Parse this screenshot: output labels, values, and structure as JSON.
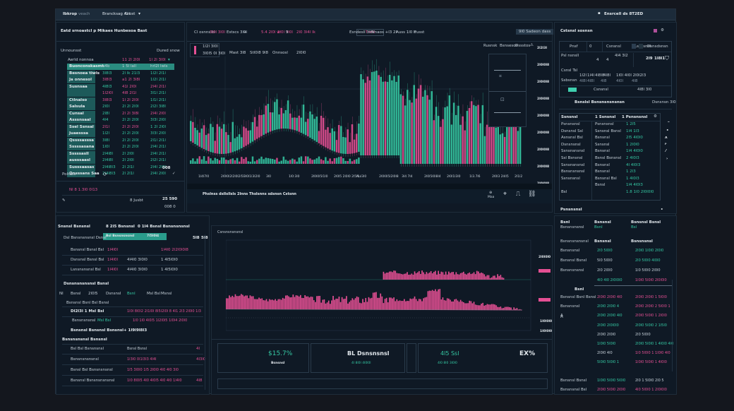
{
  "colors": {
    "up": "#35c9a4",
    "down": "#e44f93",
    "bg": "#0f1a26",
    "panel": "#0f1925",
    "topbar": "#1c2b3a"
  },
  "topbar": {
    "menu": [
      "Ibkrop",
      "veach",
      "Brancksag Ast",
      "G ost"
    ],
    "dropdown_icon": "chevron-down-icon",
    "right_label": "Ensrcell ds 8T2ED"
  },
  "watchlist": {
    "title": "Eatd srnoastcl p Mikaes Hunbesoa Bast",
    "col_left": "Unnounsst",
    "col_right": "Dured snow",
    "header_row": [
      "Aerld nonnoa",
      "11 2l 2l0l",
      "1l 2l 3l0l"
    ],
    "rows": [
      [
        "Buonconskasmt",
        "a4b",
        "1 5l  lall",
        "hrl2l  lwls",
        "up"
      ],
      [
        "Besnoea tiwls",
        "3l8l3",
        "2l lk  21l3",
        "1l2l  2l1l",
        "up"
      ],
      [
        "Ja onnesol",
        "3l8l3",
        "a1 2l  3l8l",
        "1l2l  2l1l",
        "down"
      ],
      [
        "Susnsaa",
        "4l8l3",
        "41l  2l0l",
        "2l4l  2l1l",
        "mixed"
      ],
      [
        "",
        "1l2l0l",
        "4l8 2l1l",
        "3l1l  2l1l",
        "down"
      ],
      [
        "Ctlnalso",
        "3l8l3",
        "1l 2l  2l0l",
        "1l1l  2l1l",
        "down"
      ],
      [
        "Salsula",
        "2l0l",
        "2l 2l  2l0l",
        "2l2l  3l8l",
        "up"
      ],
      [
        "Cunsal",
        "2l8l",
        "2l 2l  3l8l",
        "2l4l  2l0l",
        "mixed"
      ],
      [
        "Asssnsaal",
        "4l4",
        "2l 2l  2l0l",
        "3l3l  2l0l",
        "up"
      ],
      [
        "Ssel Ssnsal",
        "2l1l",
        "2l 2l  2l0l",
        "1 2l  2l0l",
        "down"
      ],
      [
        "Juaesssa",
        "1l2l",
        "2l 2l  2l0l",
        "3l3l  2l0l",
        "up"
      ],
      [
        "Qssssasssa",
        "3l8l",
        "2l 2l  2l0l",
        "2l1l  2l1l",
        "up"
      ],
      [
        "Sssssasana",
        "1l0l",
        "2l 2l  2l0l",
        "2l4l  2l1l",
        "up"
      ],
      [
        "Sssssasll",
        "2l4l8l",
        "2l  2l0l",
        "2l4l  2l1l",
        "up"
      ],
      [
        "ausssaasl",
        "2l4l8l",
        "2l 2l0l",
        "2l2l  2l1l",
        "up"
      ],
      [
        "Susssaasas",
        "2l4l8l3",
        "2l  2l1l",
        "2l4l  2l0l",
        "up"
      ],
      [
        "Qnsssans Saa",
        "2l4l8l3",
        "2l  2l1l",
        "2l4l  2l0l",
        "up"
      ]
    ],
    "footer_badge": "008",
    "position_label": "Poltbss",
    "ticker_line": "Nl  8  1.3l0  0l13",
    "order_label": "8 Jusbt",
    "order_value": "25 590",
    "order_sub": "008 0"
  },
  "chart": {
    "toolbar": [
      "Cl osnns  bi",
      "3l0l 3l0l",
      "Estscs  3l0l",
      "+",
      "5.4 2l0l  w",
      "2l0l  3l0l",
      "9",
      "2l0 3l4l  Ik",
      "Tnslt",
      "Esndesll  3l6l",
      "Vnaos  +l3  2l",
      "Auss  1l0  h",
      "Fusst",
      "9l0 Sadeon dass"
    ],
    "mini_legend": [
      "1l2l  3l0l",
      "3l0l5 0l  3l0l"
    ],
    "legend": [
      "Mast  3l8",
      "Stl0l8  9l8",
      "Onnsosl",
      "2l0l0"
    ],
    "right_tabs": [
      "Rusnsk",
      "Bsnsesos",
      "Dssstos"
    ],
    "y_ticks": [
      "2l2l3l",
      "2l0l0l8",
      "2l0l0l8",
      "2l0l0l8",
      "2l0l0l8",
      "2l0l0l8",
      "2l0l0l8",
      "2l0l0l8",
      "2l0l0l8"
    ],
    "x_ticks": [
      "1l4l7l0",
      "2l0l0l2l2l0l2l5l",
      "3l0l1l3l2l0",
      "3l0",
      "1l0:3l0",
      "2l0l0l5l1l0",
      "2l0l5  2l0l0  2l5l0",
      "Aul3l0",
      "2l0l0l5l2l0l8",
      "3l4  7l4",
      "2l0l5l0l8l4",
      "2l0l1l3l0",
      "1l3.7l6",
      "2l0l3  2l4l5",
      "2l1l2"
    ],
    "bottom_label": "Phslnss  dsllsllsls  2lnns  Thslsnns  sdsnsn Cstsnn",
    "bottom_icons": [
      "zoom-label",
      "crosshair-icon",
      "line-tool-icon",
      "chain-icon"
    ],
    "bottom_zoom": "Maa"
  },
  "order_panel": {
    "title": "Cstsnsl  sosnsn",
    "tabs": [
      "Pnsf",
      "0",
      "Csnsnsl",
      "Lssdsnsl",
      "Dsnsdsnsn"
    ],
    "row1_label": "Psl nsnsll",
    "row1_vals": [
      "4",
      "4",
      "4l4 3l2"
    ],
    "row1_right": [
      "2l9",
      "1l8l1"
    ],
    "row2_label": "Csnsl  Tsl",
    "row2_vals": [
      "1l2l",
      "1l4l",
      "4l8l8",
      "4l8l",
      "1l0l 4l0l  2l0l2l3"
    ],
    "row3_label": "Ssbsnsn",
    "row3_vals": [
      "4l8l",
      "4l8l",
      "4l8",
      "4l0l",
      "4l8"
    ],
    "toggle": "Dsnsl",
    "toggle_mid": "Csnsnsl",
    "toggle_right": "4l8l 3l0",
    "action": "Bsnslsl  Bsnsnsnsnsnsn",
    "action_right": "Dsnsnsn  3l0"
  },
  "positions": {
    "headers": [
      "Ssnsnsl",
      "1  Ssnsnsl",
      "1  Psnsnsnsl"
    ],
    "rows": [
      [
        "Psnsnsnsl",
        "Psnsnsnsl",
        "1  2l5"
      ],
      [
        "Dsnsnsl  Ssl",
        "Ssnsnsl  Bsnsl",
        "1l4  1l3"
      ],
      [
        "Asnsnsl  Bsl",
        "Bsnsnsl",
        "2l5  4l0l0"
      ],
      [
        "Dsnsnsnsl",
        "Ssnsnsl",
        "1  2l0l0"
      ],
      [
        "Ssnsnsnsnsl",
        "Bsnsnsl",
        "1l4  4l0l0"
      ],
      [
        "Ssl  Bsnsnsl",
        "Bsnsl  Bsnsnsl",
        "2  4l0l3"
      ],
      [
        "Ssnsnsnsnsl",
        "Bsnsnsl",
        "4l  4l0l3"
      ],
      [
        "Bsnsnsnsnsl",
        "Bsnsnsl",
        "1  2l3"
      ],
      [
        "Ssnsnsnsl",
        "Bsnsnsl  Bsl",
        "1  4l0l3"
      ],
      [
        "",
        "Bsnsl",
        "1l4  4l0l3"
      ],
      [
        "Bsl",
        "",
        "1.8  1l0   2l0l0l0"
      ]
    ],
    "footer": "Psnsnsnsl"
  },
  "orders_table": {
    "tabs": [
      "Snsnsl  Bsnsnsl",
      "8  2l5  Bsnsnsl",
      "0  1l4  Bsnsl  Bsnsnsnsnsl"
    ],
    "active_tab": "Bsl  Bsnsnsnsnsl",
    "active_tab_vals": [
      "4l8",
      "4l8",
      "7l5l0l4"
    ],
    "header_right": [
      "5l8",
      "5l8"
    ],
    "sub_header": "Dsl  Bsnsnsnsnsl  Dsnsl",
    "rows": [
      [
        "Bsnsnsl  Bsnsl  Bsl",
        "1l4l0l",
        "",
        "1l4l0  2l2l0l0l8"
      ],
      [
        "Dsnsnsl  Bsnsl  Bsl",
        "1l4l0l",
        "4l4l0  3l0l0",
        "1  4l5l0l0"
      ],
      [
        "Lsnsnsnsnsl  Bsl",
        "1l4l0l",
        "4l4l0  3l0l0",
        "1  4l5l0l0"
      ]
    ],
    "section2_title": "Dsnsnsnsnsnsl  Bsnsl",
    "section2_cols": [
      "Nl",
      "Bsnsl",
      "2l0l5",
      "Dsnsnsl",
      "Bsnl",
      "Msl  Bsl",
      "Msnsl"
    ],
    "section2_sub": "Bsnsnsl  Bsnl  Bsl  Bsnsl",
    "section2_rows": [
      {
        "label": "Dl2l3l  1  Msl  Bsl",
        "vals": "1l0l  8l0l2  2l1l0l  8l5l2l0l  8  4l1  2l3  2l0l0  1l3",
        "color": "down"
      },
      {
        "label": "Bsnsnsnsnsl",
        "mid": "Msl  Bsl",
        "vals": "1l0  1l0  4l0l5  1l2l0l5  1l0l4  2l0l0",
        "color": "mixed"
      }
    ],
    "summary_label": "Bsnsnsl  Bsnsnsl  Bsnsnsl",
    "summary_val": "+ 1l9l9l8l3",
    "section3_title": "Bsnsnsnsnsl  Bsnsnsl",
    "section3_rows": [
      {
        "label": "Bsl  Bsl  Bsnsnsnsl",
        "mid": "Bsnsl  Bsnsl",
        "right": "4l"
      },
      {
        "label": "Bsnsnsnsnsnsl",
        "mid": "1l3l0  0l1l3l3  4l4l",
        "right": "4l3l0"
      },
      {
        "label": "Bsnsl  Bsl  Bsnsnsnsnsl",
        "mid": "1l5  3l0l0  1l5  2l0l0  4l0  4l0  3l0",
        "right": ""
      },
      {
        "label": "Bsnsnsl  Bsnsnsnsnsnsl",
        "mid": "1l0  8l0l5  4l0  4l0l5  4l0  4l0  1l4l0",
        "right": "4l8"
      }
    ]
  },
  "depth_chart": {
    "title": "Csnsnsnsnsnsl",
    "labels_right": [
      "2l0l0l0",
      "2l0l0l0",
      "2l0l0l0",
      "1l0l0l0",
      "1l0l0l0"
    ]
  },
  "stats": {
    "cards": [
      {
        "value": "$15.7%",
        "sub": "Bsnsnsl",
        "color": "up"
      },
      {
        "value": "BL Dsnsnsnsl",
        "sub": "4l  8l0l  4l0l0l",
        "color": "neutral"
      },
      {
        "value": "4l5 Ssl",
        "sub": "4l0  8l0  3l0l0",
        "color": "up"
      },
      {
        "value": "EX%",
        "sub": "",
        "color": "neutral"
      }
    ]
  },
  "trades": {
    "headers": [
      "Bsnl",
      "Bsnsnsl",
      "Bsnsnsl  Bsnsl"
    ],
    "sub_headers": [
      "Bsnsnsnsnsl",
      "Bsnl",
      "Bsl"
    ],
    "section_a": "Bsnsnsnsnsnsl",
    "section_a_cols": [
      "Bsnsnsl",
      "Bsnsnsnsl"
    ],
    "rows_a": [
      {
        "l": "Bsnsnsnsl",
        "a": "2l0  5l0l0",
        "b": "2l0l0  1l0l0  2l0l0",
        "ca": "up",
        "cb": "up"
      },
      {
        "l": "Bsnsnsl  Bsnsl",
        "a": "5l0  5l0l0",
        "b": "2l0  5l0l0  4l0l0",
        "ca": "neutral",
        "cb": "up"
      },
      {
        "l": "Bsnsnsnsnsl",
        "a": "2l0  2l0l0",
        "b": "1l0  5l0l0  2l0l0",
        "ca": "neutral",
        "cb": "neutral"
      },
      {
        "l": "",
        "a": "4l0  4l0  2l0l0l0",
        "b": "1l0l0  5l0l0  2l0l0l0",
        "ca": "up",
        "cb": "down"
      }
    ],
    "section_b": "Bsnl",
    "rows_b": [
      {
        "l": "Bsnsnsl  Bsnl  Bsnsl",
        "a": "2l0l0  2l0l0  4l0",
        "b": "2l0l0  2l0l0  1  5l0l0",
        "ca": "down",
        "cb": "down"
      },
      {
        "l": "Bsnsnsnsl",
        "a": "2l0l0  2l0l0  4",
        "b": "2l0l0  2l0l0  2  5l0l0  1",
        "ca": "up",
        "cb": "down"
      },
      {
        "l": "A",
        "a": "2l0l0  2l0l0  4l0",
        "b": "2l0l0  5l0l0  1  2l0l0",
        "ca": "up",
        "cb": "down"
      },
      {
        "l": "",
        "a": "2l0l0  2l0l0l0",
        "b": "2l0l0  5l0l0  2  1l5l0",
        "ca": "up",
        "cb": "up"
      },
      {
        "l": "",
        "a": "2l0l0  2l0l0",
        "b": "2l0  5l0l0",
        "ca": "neutral",
        "cb": "neutral"
      },
      {
        "l": "",
        "a": "1l0l0  5l0l0",
        "b": "2l0l0  5l0l0  1  4l0l0  4l0",
        "ca": "up",
        "cb": "up"
      },
      {
        "l": "",
        "a": "2l0l0  4l0",
        "b": "1l0  5l0l0  1  1l0l0  4l0",
        "ca": "neutral",
        "cb": "down"
      },
      {
        "l": "",
        "a": "5l0l0  5l0l0  1",
        "b": "1l0l0  5l0l0  1  4l0l0",
        "ca": "up",
        "cb": "down"
      }
    ],
    "footer": [
      {
        "l": "Bsnsnsl  Bsnsl",
        "a": "1l0l0  5l0l0  5l0l0",
        "b": "2l0  1  5l0l0  2l0  5",
        "ca": "up",
        "cb": "neutral"
      },
      {
        "l": "Bsnsnsnsl  Bsl",
        "a": "2l0l0  5l0l0  2l0l0",
        "b": "4l0  5l0l0  1  2l0l0l0",
        "ca": "down",
        "cb": "down"
      }
    ]
  }
}
